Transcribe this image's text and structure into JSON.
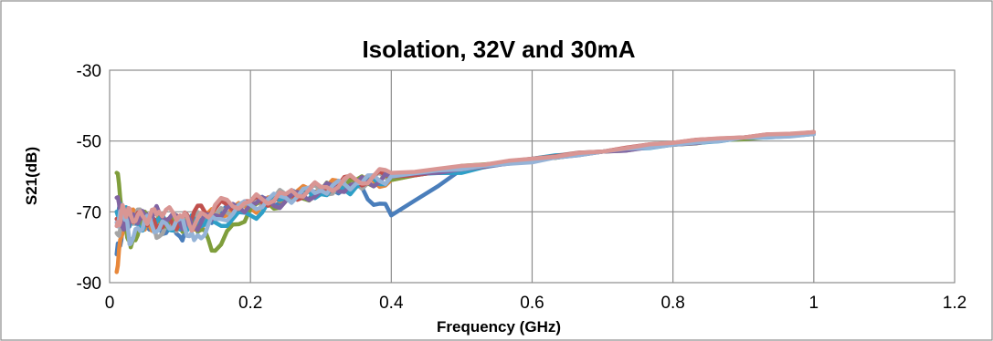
{
  "chart_data": {
    "type": "line",
    "title": "Isolation, 32V and 30mA",
    "xlabel": "Frequency (GHz)",
    "ylabel": "S21(dB)",
    "xlim": [
      0,
      1.2
    ],
    "ylim": [
      -90,
      -30
    ],
    "xticks": [
      0,
      0.2,
      0.4,
      0.6,
      0.8,
      1,
      1.2
    ],
    "xtick_labels": [
      "0",
      "0.2",
      "0.4",
      "0.6",
      "0.8",
      "1",
      "1.2"
    ],
    "yticks": [
      -90,
      -70,
      -50,
      -30
    ],
    "ytick_labels": [
      "-90",
      "-70",
      "-50",
      "-30"
    ],
    "grid": true,
    "legend": "none",
    "x": [
      0.01,
      0.02,
      0.03,
      0.05,
      0.07,
      0.1,
      0.12,
      0.15,
      0.2,
      0.25,
      0.3,
      0.35,
      0.4,
      0.5,
      0.6,
      0.7,
      0.8,
      0.9,
      1.0
    ],
    "series": [
      {
        "color": "#4a7ebb",
        "values": [
          -82,
          -74,
          -71,
          -73,
          -74,
          -77,
          -74,
          -71,
          -68,
          -66,
          -64,
          -62,
          -71,
          -58,
          -55,
          -53,
          -51,
          -49.5,
          -48
        ]
      },
      {
        "color": "#e8873a",
        "values": [
          -87,
          -72,
          -70,
          -75,
          -73,
          -72,
          -75,
          -70,
          -69,
          -66,
          -63,
          -62,
          -61,
          -58,
          -55,
          -53,
          -50.5,
          -49,
          -47.5
        ]
      },
      {
        "color": "#a5a5a5",
        "values": [
          -76,
          -73,
          -72,
          -70,
          -77,
          -73,
          -72,
          -71,
          -68,
          -65,
          -64,
          -62,
          -60,
          -58,
          -55,
          -53,
          -51,
          -49,
          -48
        ]
      },
      {
        "color": "#7f9e3c",
        "values": [
          -59,
          -71,
          -80,
          -70,
          -72,
          -74,
          -73,
          -81,
          -69,
          -67,
          -64,
          -61,
          -61,
          -57,
          -55,
          -53,
          -51,
          -49.5,
          -48
        ]
      },
      {
        "color": "#2e9fc7",
        "values": [
          -70,
          -69,
          -73,
          -74,
          -72,
          -75,
          -72,
          -73,
          -71,
          -66,
          -65,
          -63,
          -60,
          -59,
          -55,
          -53,
          -51,
          -49,
          -48
        ]
      },
      {
        "color": "#c0504d",
        "values": [
          -72,
          -70,
          -71,
          -72,
          -74,
          -73,
          -70,
          -69,
          -67,
          -66,
          -63,
          -61,
          -60,
          -58,
          -55,
          -53,
          -50.5,
          -49,
          -47.5
        ]
      },
      {
        "color": "#8064a2",
        "values": [
          -66,
          -75,
          -72,
          -71,
          -70,
          -73,
          -74,
          -71,
          -68,
          -67,
          -64,
          -62,
          -60,
          -58,
          -55,
          -53,
          -51,
          -49,
          -48
        ]
      },
      {
        "color": "#95b3d7",
        "values": [
          -73,
          -70,
          -79,
          -72,
          -75,
          -72,
          -78,
          -72,
          -68,
          -66,
          -64,
          -62,
          -60,
          -58,
          -56,
          -53,
          -51,
          -49,
          -48
        ]
      },
      {
        "color": "#d99694",
        "values": [
          -74,
          -69,
          -71,
          -72,
          -70,
          -71,
          -74,
          -68,
          -67,
          -65,
          -63,
          -61,
          -59,
          -57,
          -55,
          -53,
          -50.5,
          -49,
          -47.5
        ]
      }
    ]
  }
}
